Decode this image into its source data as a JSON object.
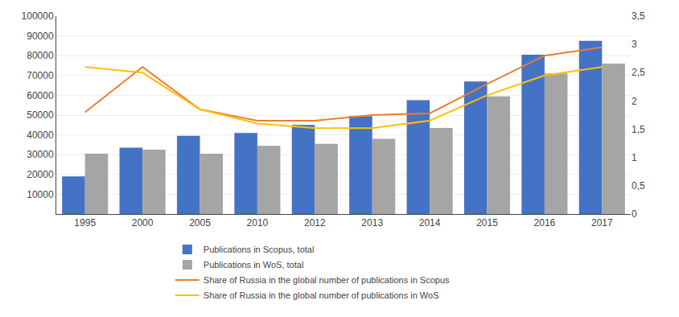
{
  "chart_data": {
    "type": "bar",
    "categories": [
      "1995",
      "2000",
      "2005",
      "2010",
      "2012",
      "2013",
      "2014",
      "2015",
      "2016",
      "2017"
    ],
    "series": [
      {
        "name": "Publications in Scopus, total",
        "type": "bar",
        "color": "#4472C4",
        "values": [
          19000,
          33500,
          39500,
          41000,
          45000,
          49500,
          57500,
          67000,
          80500,
          87500
        ]
      },
      {
        "name": "Publications in WoS, total",
        "type": "bar",
        "color": "#A5A5A5",
        "values": [
          30500,
          32500,
          30500,
          34500,
          35500,
          38000,
          43500,
          59500,
          71000,
          76000
        ]
      },
      {
        "name": "Share of Russia in the global number of publications in Scopus",
        "type": "line",
        "axis": "y2",
        "color": "#ED7D31",
        "values": [
          1.8,
          2.6,
          1.85,
          1.65,
          1.65,
          1.75,
          1.78,
          2.3,
          2.8,
          2.95
        ]
      },
      {
        "name": "Share of Russia in the global number of publications in WoS",
        "type": "line",
        "axis": "y2",
        "color": "#FFC000",
        "values": [
          2.6,
          2.5,
          1.85,
          1.6,
          1.52,
          1.52,
          1.65,
          2.1,
          2.45,
          2.6
        ]
      }
    ],
    "ylim": [
      0,
      100000
    ],
    "yticks": [
      10000,
      20000,
      30000,
      40000,
      50000,
      60000,
      70000,
      80000,
      90000,
      100000
    ],
    "y2lim": [
      0,
      3.5
    ],
    "y2ticks": [
      0,
      {
        "value": 0.5,
        "label": "0,5"
      },
      1,
      {
        "value": 1.5,
        "label": "1,5"
      },
      2,
      {
        "value": 2.5,
        "label": "2,5"
      },
      3,
      {
        "value": 3.5,
        "label": "3,5"
      }
    ],
    "grid": true,
    "legend": "bottom"
  }
}
